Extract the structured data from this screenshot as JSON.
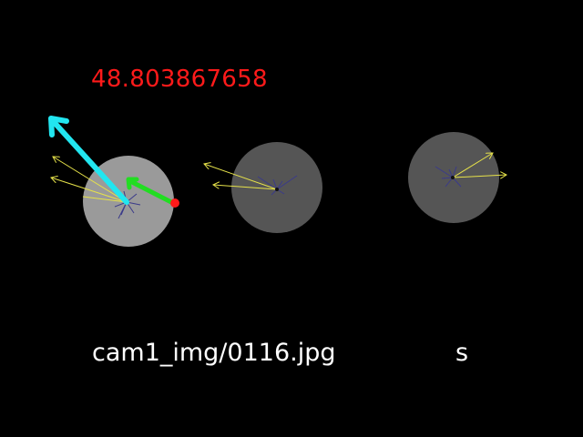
{
  "readout": {
    "value": "48.803867658"
  },
  "image_name": "cam1_img/0116.jpg",
  "key_pressed": "s",
  "colors": {
    "background": "#000000",
    "readout": "#ff1a1a",
    "label": "#ffffff",
    "disc_selected": "#9a9a9a",
    "disc_other": "#555555",
    "primary_arrow": "#22e6f0",
    "secondary_arrow": "#22dd22",
    "thin_arrow": "#e6e24a",
    "marker": "#ff1a1a",
    "spokes": "#3a3a8a"
  },
  "icons": {
    "primary_arrow": "cyan-arrow-icon",
    "secondary_arrow": "green-arrow-icon",
    "marker": "red-dot-icon"
  }
}
